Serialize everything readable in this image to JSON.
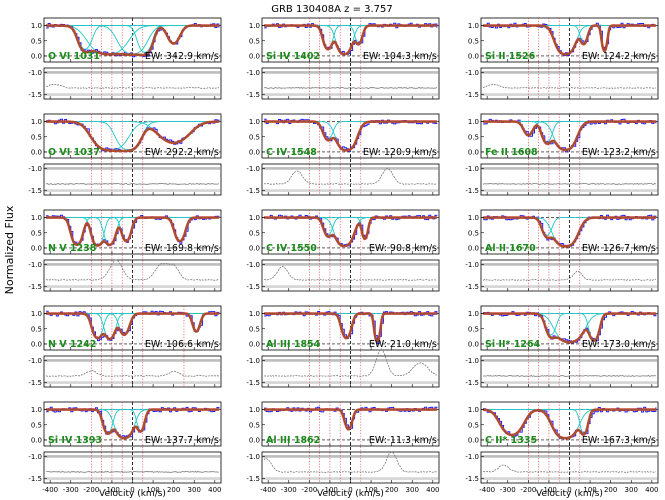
{
  "figure": {
    "title": "GRB 130408A  z = 3.757",
    "ylabel": "Normalized Flux",
    "xlabel": "Velocity (km/s)"
  },
  "colors": {
    "data": "#1f1fff",
    "fit": "#a0522d",
    "fit_outline": "#e03030",
    "component": "#20c8c8",
    "marker": "#e03030",
    "ion_label": "#1a8a1a",
    "residual": "#7a7a7a",
    "reference_lines": "#000000",
    "band": "#888888"
  },
  "chart_data": {
    "type": "line",
    "x_axis": {
      "range": [
        -430,
        430
      ],
      "ticks": [
        -400,
        -300,
        -200,
        -100,
        0,
        100,
        200,
        300,
        400
      ]
    },
    "flux_axis": {
      "range": [
        -0.2,
        1.25
      ],
      "ticks": [
        0.0,
        0.5,
        1.0
      ],
      "tick_labels": [
        "0.0",
        "0.5",
        "1.0"
      ]
    },
    "residual_axis": {
      "range": [
        -1.6,
        -0.9
      ],
      "ticks": [
        -1.0,
        -1.5
      ],
      "tick_labels": [
        "-1.0",
        "-1.5"
      ]
    },
    "reference_lines": {
      "continuum": 1.0,
      "zero": 0.0,
      "velocity_zero": 0
    },
    "columns": [
      {
        "panels": [
          {
            "ion": "O VI 1031",
            "ew": "EW: 342.9 km/s",
            "markers": [
              -200,
              -150,
              -100,
              -50,
              50
            ],
            "absorbers": [
              {
                "v": -120,
                "depth": 0.95,
                "width": 60
              },
              {
                "v": 0,
                "depth": 0.9,
                "width": 45
              },
              {
                "v": 60,
                "depth": 0.7,
                "width": 25
              },
              {
                "v": -230,
                "depth": 0.5,
                "width": 25
              },
              {
                "v": 200,
                "depth": 0.3,
                "width": 25
              }
            ],
            "residual_bumps": [
              {
                "v": -380,
                "amp": 0.08,
                "width": 30
              }
            ]
          },
          {
            "ion": "O VI 1037",
            "ew": "EW: 292.2 km/s",
            "markers": [
              -200,
              -150,
              -100,
              -50,
              50
            ],
            "absorbers": [
              {
                "v": -110,
                "depth": 0.95,
                "width": 55
              },
              {
                "v": -20,
                "depth": 0.85,
                "width": 40
              },
              {
                "v": 200,
                "depth": 0.4,
                "width": 60
              }
            ],
            "residual_bumps": []
          },
          {
            "ion": "N V 1238",
            "ew": "EW: 169.8 km/s",
            "markers": [
              -200,
              -150,
              -100,
              -50,
              50
            ],
            "absorbers": [
              {
                "v": -270,
                "depth": 0.75,
                "width": 20
              },
              {
                "v": -170,
                "depth": 0.85,
                "width": 20
              },
              {
                "v": -110,
                "depth": 0.75,
                "width": 20
              },
              {
                "v": -30,
                "depth": 0.5,
                "width": 18
              },
              {
                "v": 230,
                "depth": 0.5,
                "width": 20
              }
            ],
            "residual_bumps": [
              {
                "v": -80,
                "amp": 0.45,
                "width": 30
              },
              {
                "v": 140,
                "amp": 0.35,
                "width": 30
              },
              {
                "v": 200,
                "amp": 0.3,
                "width": 25
              }
            ]
          },
          {
            "ion": "N V 1242",
            "ew": "EW: 106.6 km/s",
            "markers": [
              -200,
              -150,
              -100,
              -50,
              50,
              250
            ],
            "absorbers": [
              {
                "v": -170,
                "depth": 0.55,
                "width": 20
              },
              {
                "v": -110,
                "depth": 0.6,
                "width": 20
              },
              {
                "v": -40,
                "depth": 0.4,
                "width": 20
              },
              {
                "v": 310,
                "depth": 0.3,
                "width": 15
              }
            ],
            "residual_bumps": [
              {
                "v": -200,
                "amp": 0.12,
                "width": 25
              },
              {
                "v": 200,
                "amp": 0.1,
                "width": 25
              }
            ]
          },
          {
            "ion": "Si IV 1393",
            "ew": "EW: 137.7 km/s",
            "markers": [
              -200,
              -150,
              -100,
              -50,
              50
            ],
            "absorbers": [
              {
                "v": -40,
                "depth": 0.95,
                "width": 30
              },
              {
                "v": -120,
                "depth": 0.5,
                "width": 18
              },
              {
                "v": 40,
                "depth": 0.4,
                "width": 15
              }
            ],
            "residual_bumps": []
          }
        ]
      },
      {
        "panels": [
          {
            "ion": "Si IV 1402",
            "ew": "EW: 104.3 km/s",
            "markers": [
              -200,
              -150,
              -100,
              -50,
              50
            ],
            "absorbers": [
              {
                "v": -30,
                "depth": 0.95,
                "width": 25
              },
              {
                "v": -110,
                "depth": 0.5,
                "width": 18
              },
              {
                "v": 40,
                "depth": 0.3,
                "width": 15
              }
            ],
            "residual_bumps": []
          },
          {
            "ion": "C IV 1548",
            "ew": "EW: 120.9 km/s",
            "markers": [
              -200,
              -150,
              -100,
              -50,
              50
            ],
            "absorbers": [
              {
                "v": -20,
                "depth": 0.98,
                "width": 32
              },
              {
                "v": -110,
                "depth": 0.3,
                "width": 20
              }
            ],
            "residual_bumps": [
              {
                "v": -260,
                "amp": 0.3,
                "width": 25
              },
              {
                "v": 180,
                "amp": 0.35,
                "width": 25
              }
            ]
          },
          {
            "ion": "C IV 1550",
            "ew": "EW: 90.8 km/s",
            "markers": [
              -200,
              -150,
              -100,
              -50,
              50
            ],
            "absorbers": [
              {
                "v": -30,
                "depth": 0.92,
                "width": 30
              },
              {
                "v": -110,
                "depth": 0.3,
                "width": 18
              },
              {
                "v": 70,
                "depth": 0.4,
                "width": 12
              }
            ],
            "residual_bumps": [
              {
                "v": -330,
                "amp": 0.3,
                "width": 25
              }
            ]
          },
          {
            "ion": "Al III 1854",
            "ew": "EW: 21.0 km/s",
            "markers": [
              -200,
              -150,
              -100,
              -50,
              50
            ],
            "absorbers": [
              {
                "v": -20,
                "depth": 0.55,
                "width": 18
              },
              {
                "v": 130,
                "depth": 0.8,
                "width": 10
              }
            ],
            "residual_bumps": [
              {
                "v": 150,
                "amp": 0.6,
                "width": 25
              },
              {
                "v": 340,
                "amp": 0.3,
                "width": 35
              }
            ]
          },
          {
            "ion": "Al III 1862",
            "ew": "EW: 11.3 km/s",
            "markers": [
              -200,
              -150,
              -100,
              -50,
              50
            ],
            "absorbers": [
              {
                "v": -10,
                "depth": 0.35,
                "width": 15
              }
            ],
            "residual_bumps": [
              {
                "v": -410,
                "amp": 0.3,
                "width": 25
              },
              {
                "v": 200,
                "amp": 0.45,
                "width": 25
              }
            ]
          }
        ]
      },
      {
        "panels": [
          {
            "ion": "Si II 1526",
            "ew": "EW: 124.2 km/s",
            "markers": [
              -200,
              -150,
              -100,
              -50,
              50
            ],
            "absorbers": [
              {
                "v": -20,
                "depth": 0.97,
                "width": 32
              },
              {
                "v": 70,
                "depth": 0.3,
                "width": 15
              },
              {
                "v": 170,
                "depth": 0.6,
                "width": 10
              }
            ],
            "residual_bumps": [
              {
                "v": -370,
                "amp": 0.08,
                "width": 25
              }
            ]
          },
          {
            "ion": "Fe II 1608",
            "ew": "EW: 123.2 km/s",
            "markers": [
              -200,
              -150,
              -100,
              -50,
              50
            ],
            "absorbers": [
              {
                "v": -20,
                "depth": 0.9,
                "width": 35
              },
              {
                "v": -110,
                "depth": 0.4,
                "width": 20
              },
              {
                "v": -200,
                "depth": 0.2,
                "width": 20
              }
            ],
            "residual_bumps": []
          },
          {
            "ion": "Al II 1670",
            "ew": "EW: 126.7 km/s",
            "markers": [
              -200,
              -150,
              -100,
              -50,
              50
            ],
            "absorbers": [
              {
                "v": -20,
                "depth": 0.99,
                "width": 38
              },
              {
                "v": -110,
                "depth": 0.3,
                "width": 20
              }
            ],
            "residual_bumps": [
              {
                "v": 40,
                "amp": 0.2,
                "width": 20
              }
            ]
          },
          {
            "ion": "Si II* 1264",
            "ew": "EW: 173.0 km/s",
            "markers": [
              -200,
              -150,
              -100,
              -50,
              50
            ],
            "absorbers": [
              {
                "v": 0,
                "depth": 0.95,
                "width": 45
              },
              {
                "v": -90,
                "depth": 0.4,
                "width": 20
              },
              {
                "v": 120,
                "depth": 0.7,
                "width": 18
              }
            ],
            "residual_bumps": []
          },
          {
            "ion": "C II* 1335",
            "ew": "EW: 167.3 km/s",
            "markers": [
              -200,
              -150,
              -100,
              -50,
              50
            ],
            "absorbers": [
              {
                "v": -20,
                "depth": 0.95,
                "width": 40
              },
              {
                "v": -280,
                "depth": 0.6,
                "width": 40
              },
              {
                "v": 70,
                "depth": 0.5,
                "width": 15
              }
            ],
            "residual_bumps": [
              {
                "v": -320,
                "amp": 0.15,
                "width": 25
              }
            ]
          }
        ]
      }
    ]
  }
}
